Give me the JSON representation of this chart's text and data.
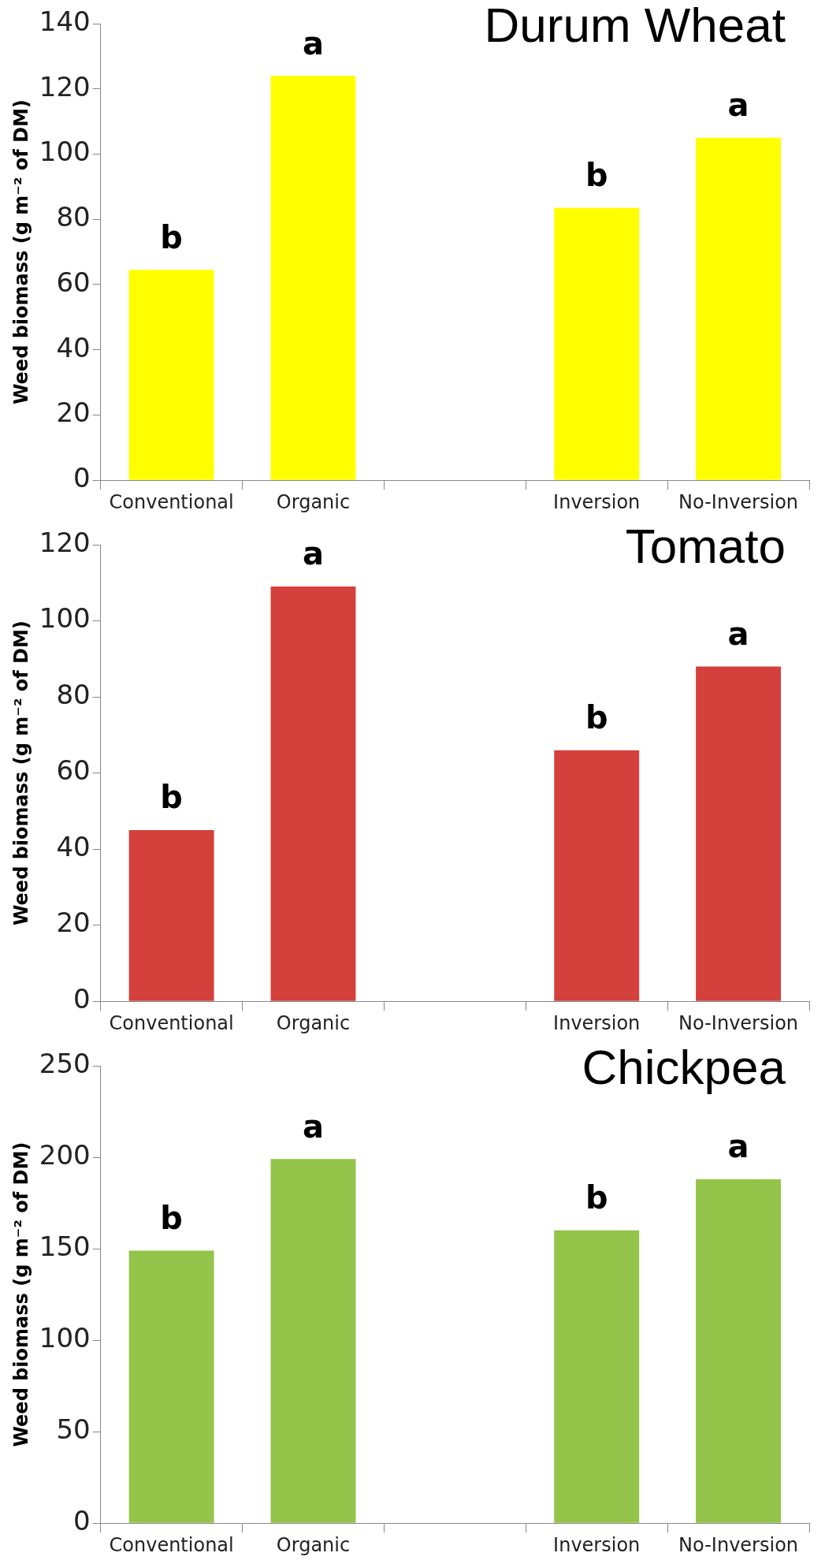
{
  "chart_data": [
    {
      "type": "bar",
      "title": "Durum Wheat",
      "ylabel": "Weed biomass (g m⁻² of DM)",
      "categories": [
        "Conventional",
        "Organic",
        null,
        "Inversion",
        "No-Inversion"
      ],
      "values": [
        64.5,
        124,
        null,
        83.5,
        105
      ],
      "color": "#ffff00",
      "ylim": [
        0,
        140
      ],
      "yticks": [
        0,
        20,
        40,
        60,
        80,
        100,
        120,
        140
      ],
      "grid": false,
      "legend": false,
      "annotations": [
        {
          "text": "b",
          "x": "Conventional",
          "y": 64.5
        },
        {
          "text": "a",
          "x": "Organic",
          "y": 124
        },
        {
          "text": "b",
          "x": "Inversion",
          "y": 83.5
        },
        {
          "text": "a",
          "x": "No-Inversion",
          "y": 105
        }
      ]
    },
    {
      "type": "bar",
      "title": "Tomato",
      "ylabel": "Weed biomass (g m⁻² of DM)",
      "categories": [
        "Conventional",
        "Organic",
        null,
        "Inversion",
        "No-Inversion"
      ],
      "values": [
        45,
        109,
        null,
        66,
        88
      ],
      "color": "#d4403b",
      "ylim": [
        0,
        120
      ],
      "yticks": [
        0,
        20,
        40,
        60,
        80,
        100,
        120
      ],
      "grid": false,
      "legend": false,
      "annotations": [
        {
          "text": "b",
          "x": "Conventional",
          "y": 45
        },
        {
          "text": "a",
          "x": "Organic",
          "y": 109
        },
        {
          "text": "b",
          "x": "Inversion",
          "y": 66
        },
        {
          "text": "a",
          "x": "No-Inversion",
          "y": 88
        }
      ]
    },
    {
      "type": "bar",
      "title": "Chickpea",
      "ylabel": "Weed biomass (g m⁻² of DM)",
      "categories": [
        "Conventional",
        "Organic",
        null,
        "Inversion",
        "No-Inversion"
      ],
      "values": [
        149,
        199,
        null,
        160,
        188
      ],
      "color": "#94c449",
      "ylim": [
        0,
        250
      ],
      "yticks": [
        0,
        50,
        100,
        150,
        200,
        250
      ],
      "grid": false,
      "legend": false,
      "annotations": [
        {
          "text": "b",
          "x": "Conventional",
          "y": 149
        },
        {
          "text": "a",
          "x": "Organic",
          "y": 199
        },
        {
          "text": "b",
          "x": "Inversion",
          "y": 160
        },
        {
          "text": "a",
          "x": "No-Inversion",
          "y": 188
        }
      ]
    }
  ]
}
